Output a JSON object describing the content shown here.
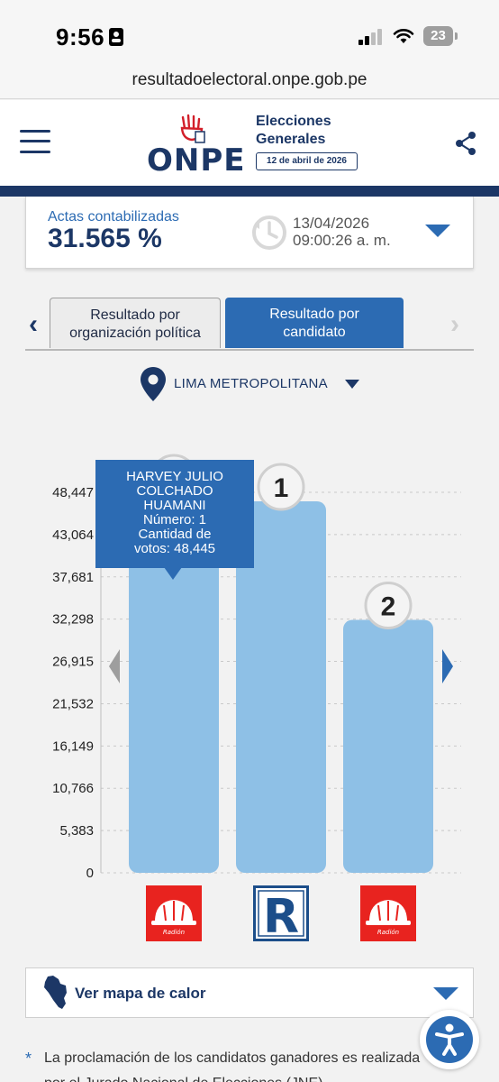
{
  "status_bar": {
    "time": "9:56",
    "battery": "23"
  },
  "browser": {
    "url": "resultadoelectoral.onpe.gob.pe"
  },
  "header": {
    "logo_text": "ONPE",
    "title_line1": "Elecciones",
    "title_line2": "Generales",
    "date_badge": "12 de abril de 2026"
  },
  "actas": {
    "label": "Actas contabilizadas",
    "value": "31.565 %",
    "date": "13/04/2026",
    "time": "09:00:26 a. m."
  },
  "tabs": [
    {
      "line1": "Resultado por",
      "line2": "organización política"
    },
    {
      "line1": "Resultado por",
      "line2": "candidato"
    }
  ],
  "location": {
    "label": "LIMA METROPOLITANA"
  },
  "tooltip": {
    "line1": "HARVEY JULIO",
    "line2": "COLCHADO",
    "line3": "HUAMANI",
    "line4": "Número: 1",
    "line5": "Cantidad de",
    "line6": "votos: 48,445"
  },
  "chart_data": {
    "type": "bar",
    "categories": [
      "HARVEY JULIO COLCHADO HUAMANI",
      "",
      ""
    ],
    "values": [
      48445,
      47300,
      32200
    ],
    "ranks": [
      "",
      "1",
      "2"
    ],
    "yticks": [
      "48,447",
      "43,064",
      "37,681",
      "32,298",
      "26,915",
      "21,532",
      "16,149",
      "10,766",
      "5,383",
      "0"
    ],
    "ylim": [
      0,
      48447
    ],
    "bar_color": "#8ec0e6",
    "grid": true,
    "xlabel": "",
    "ylabel": ""
  },
  "party_logos": [
    {
      "name": "helmet-logo",
      "text": "Radión"
    },
    {
      "name": "r-logo",
      "text": "R"
    },
    {
      "name": "helmet-logo",
      "text": "Radión"
    }
  ],
  "heatmap": {
    "label": "Ver mapa de calor"
  },
  "footnote": {
    "star": "*",
    "text": "La proclamación de los candidatos ganadores es realizada por el Jurado Nacional de Elecciones (JNE)."
  },
  "colors": {
    "navy": "#1c3766",
    "blue": "#2c6bb3",
    "bar": "#8ec0e6",
    "red": "#e8231f"
  }
}
